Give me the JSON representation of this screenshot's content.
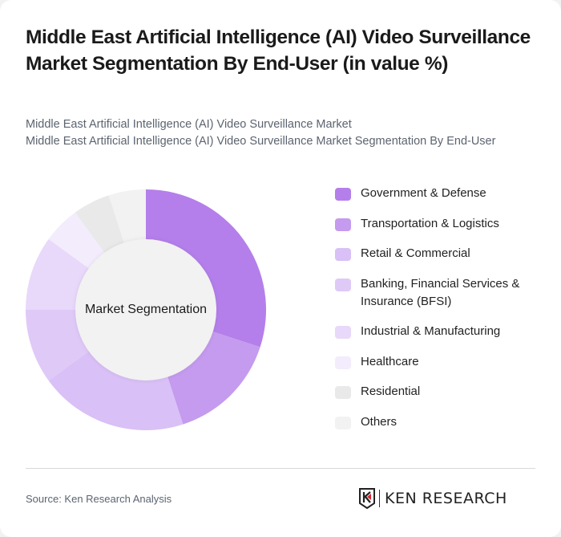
{
  "title": "Middle East Artificial Intelligence (AI) Video Surveillance Market Segmentation By End-User (in value %)",
  "subtitle": {
    "line1": "Middle East Artificial Intelligence (AI) Video Surveillance Market",
    "line2": "Middle East Artificial Intelligence (AI) Video Surveillance Market Segmentation By End-User"
  },
  "center_label": "Market Segmentation",
  "footer": {
    "source": "Source: Ken Research Analysis",
    "logo_text": "KEN RESEARCH"
  },
  "chart_data": {
    "type": "pie",
    "subtype": "donut",
    "title": "Middle East Artificial Intelligence (AI) Video Surveillance Market Segmentation By End-User (in value %)",
    "center_text": "Market Segmentation",
    "legend_position": "right",
    "categories": [
      "Government & Defense",
      "Transportation & Logistics",
      "Retail & Commercial",
      "Banking, Financial Services & Insurance (BFSI)",
      "Industrial & Manufacturing",
      "Healthcare",
      "Residential",
      "Others"
    ],
    "values": [
      30,
      15,
      20,
      10,
      10,
      5,
      5,
      5
    ],
    "colors": [
      "#b47fea",
      "#c49bee",
      "#d9c0f6",
      "#dfc9f7",
      "#e8d8fa",
      "#f3ecfc",
      "#e9e9e9",
      "#f2f2f2"
    ],
    "unit": "%"
  }
}
